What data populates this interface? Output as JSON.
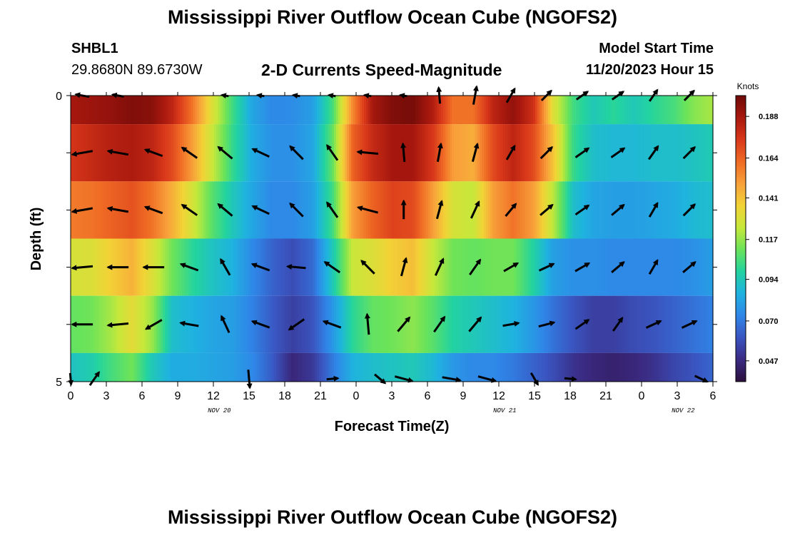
{
  "title_top": "Mississippi River Outflow Ocean Cube (NGOFS2)",
  "title_bottom": "Mississippi River Outflow Ocean Cube (NGOFS2)",
  "station": {
    "id": "SHBL1",
    "coords": "29.8680N  89.6730W"
  },
  "subtitle": "2-D Currents Speed-Magnitude",
  "model": {
    "label": "Model Start Time",
    "value": "11/20/2023 Hour 15"
  },
  "chart_data": {
    "type": "heatmap",
    "title": "2-D Currents Speed-Magnitude",
    "xlabel": "Forecast Time(Z)",
    "ylabel": "Depth (ft)",
    "x_tick_labels": [
      "0",
      "3",
      "6",
      "9",
      "12",
      "15",
      "18",
      "21",
      "0",
      "3",
      "6",
      "9",
      "12",
      "15",
      "18",
      "21",
      "0",
      "3",
      "6"
    ],
    "x_hours_since_start": [
      0,
      3,
      6,
      9,
      12,
      15,
      18,
      21,
      24,
      27,
      30,
      33,
      36,
      39,
      42,
      45,
      48,
      51,
      54
    ],
    "date_labels": [
      {
        "text": "NOV 20",
        "hour": 12.5
      },
      {
        "text": "NOV 21",
        "hour": 36.5
      },
      {
        "text": "NOV 22",
        "hour": 51.5
      }
    ],
    "y_tick_labels": [
      "0",
      "5"
    ],
    "ylim": [
      0,
      5
    ],
    "colorbar": {
      "label": "Knots",
      "ticks": [
        0.188,
        0.164,
        0.141,
        0.117,
        0.094,
        0.07,
        0.047
      ],
      "range": [
        0.035,
        0.2
      ],
      "colors": [
        "#2c0f3c",
        "#3a2a82",
        "#3a55c0",
        "#2f86e8",
        "#1fb2e0",
        "#22d3a0",
        "#6ae35a",
        "#c6e83a",
        "#f2d336",
        "#f8a13a",
        "#ef6a24",
        "#d9381a",
        "#a8180e",
        "#6e0a08"
      ]
    },
    "layers": [
      {
        "depth": 0,
        "speeds": [
          0.188,
          0.19,
          0.192,
          0.196,
          0.194,
          0.182,
          0.16,
          0.13,
          0.104,
          0.082,
          0.074,
          0.075,
          0.08,
          0.105,
          0.155,
          0.188,
          0.196,
          0.198,
          0.185,
          0.16,
          0.16,
          0.182,
          0.192,
          0.178,
          0.13,
          0.104,
          0.094,
          0.1,
          0.094,
          0.1,
          0.105,
          0.115,
          0.12
        ]
      },
      {
        "depth": 1,
        "speeds": [
          0.176,
          0.18,
          0.184,
          0.186,
          0.182,
          0.17,
          0.15,
          0.125,
          0.102,
          0.084,
          0.076,
          0.076,
          0.082,
          0.11,
          0.164,
          0.18,
          0.188,
          0.188,
          0.175,
          0.15,
          0.146,
          0.17,
          0.182,
          0.17,
          0.14,
          0.102,
          0.09,
          0.088,
          0.088,
          0.09,
          0.09,
          0.092,
          0.095
        ]
      },
      {
        "depth": 2,
        "speeds": [
          0.158,
          0.16,
          0.164,
          0.168,
          0.16,
          0.146,
          0.128,
          0.108,
          0.094,
          0.082,
          0.074,
          0.074,
          0.08,
          0.104,
          0.15,
          0.164,
          0.172,
          0.17,
          0.15,
          0.128,
          0.124,
          0.15,
          0.16,
          0.15,
          0.122,
          0.09,
          0.082,
          0.08,
          0.08,
          0.082,
          0.084,
          0.088,
          0.09
        ]
      },
      {
        "depth": 3,
        "speeds": [
          0.128,
          0.13,
          0.138,
          0.145,
          0.13,
          0.112,
          0.1,
          0.092,
          0.086,
          0.074,
          0.064,
          0.058,
          0.066,
          0.094,
          0.125,
          0.13,
          0.138,
          0.142,
          0.124,
          0.112,
          0.11,
          0.112,
          0.112,
          0.098,
          0.08,
          0.076,
          0.076,
          0.074,
          0.074,
          0.074,
          0.074,
          0.076,
          0.08
        ]
      },
      {
        "depth": 4,
        "speeds": [
          0.11,
          0.112,
          0.12,
          0.132,
          0.118,
          0.09,
          0.086,
          0.082,
          0.08,
          0.072,
          0.062,
          0.054,
          0.06,
          0.078,
          0.1,
          0.11,
          0.112,
          0.116,
          0.108,
          0.098,
          0.094,
          0.09,
          0.086,
          0.078,
          0.068,
          0.06,
          0.054,
          0.054,
          0.058,
          0.06,
          0.064,
          0.068,
          0.072
        ]
      },
      {
        "depth": 5,
        "speeds": [
          0.092,
          0.096,
          0.105,
          0.112,
          0.094,
          0.084,
          0.084,
          0.082,
          0.08,
          0.074,
          0.062,
          0.046,
          0.052,
          0.07,
          0.086,
          0.09,
          0.092,
          0.094,
          0.088,
          0.078,
          0.074,
          0.074,
          0.07,
          0.064,
          0.058,
          0.05,
          0.046,
          0.044,
          0.046,
          0.05,
          0.056,
          0.06,
          0.065
        ]
      }
    ],
    "vectors": [
      {
        "depth": 0,
        "hours": [
          1,
          4,
          13,
          16,
          19,
          22,
          25,
          28,
          31,
          34,
          37,
          40,
          43,
          46,
          49,
          52
        ],
        "angles_deg": [
          170,
          170,
          170,
          170,
          170,
          170,
          170,
          170,
          95,
          80,
          60,
          45,
          35,
          35,
          55,
          45
        ],
        "lengths": [
          0.6,
          0.5,
          0.3,
          0.3,
          0.3,
          0.3,
          0.3,
          0.3,
          0.7,
          0.8,
          0.7,
          0.6,
          0.6,
          0.6,
          0.6,
          0.6
        ]
      },
      {
        "depth": 1,
        "hours": [
          1,
          4,
          7,
          10,
          13,
          16,
          19,
          22,
          25,
          28,
          31,
          34,
          37,
          40,
          43,
          46,
          49,
          52
        ],
        "angles_deg": [
          190,
          170,
          160,
          145,
          140,
          155,
          135,
          125,
          175,
          95,
          80,
          75,
          60,
          45,
          35,
          35,
          55,
          45
        ],
        "lengths": [
          0.9,
          0.9,
          0.8,
          0.8,
          0.8,
          0.8,
          0.8,
          0.8,
          0.9,
          0.8,
          0.8,
          0.8,
          0.7,
          0.7,
          0.7,
          0.7,
          0.7,
          0.7
        ]
      },
      {
        "depth": 2,
        "hours": [
          1,
          4,
          7,
          10,
          13,
          16,
          19,
          22,
          25,
          28,
          31,
          34,
          37,
          40,
          43,
          46,
          49,
          52
        ],
        "angles_deg": [
          190,
          170,
          160,
          145,
          140,
          155,
          135,
          125,
          165,
          90,
          75,
          65,
          50,
          40,
          35,
          40,
          60,
          45
        ],
        "lengths": [
          0.9,
          0.9,
          0.8,
          0.8,
          0.8,
          0.8,
          0.8,
          0.8,
          0.9,
          0.8,
          0.8,
          0.8,
          0.7,
          0.7,
          0.7,
          0.7,
          0.7,
          0.7
        ]
      },
      {
        "depth": 3,
        "hours": [
          1,
          4,
          7,
          10,
          13,
          16,
          19,
          22,
          25,
          28,
          31,
          34,
          37,
          40,
          43,
          46,
          49,
          52
        ],
        "angles_deg": [
          185,
          180,
          180,
          160,
          120,
          160,
          175,
          145,
          135,
          75,
          65,
          55,
          30,
          25,
          30,
          40,
          60,
          40
        ],
        "lengths": [
          0.9,
          0.9,
          0.9,
          0.8,
          0.8,
          0.8,
          0.8,
          0.8,
          0.8,
          0.8,
          0.8,
          0.8,
          0.7,
          0.7,
          0.7,
          0.7,
          0.7,
          0.7
        ]
      },
      {
        "depth": 4,
        "hours": [
          1,
          4,
          7,
          10,
          13,
          16,
          19,
          22,
          25,
          28,
          31,
          34,
          37,
          40,
          43,
          46,
          49,
          52
        ],
        "angles_deg": [
          180,
          185,
          210,
          170,
          115,
          160,
          215,
          160,
          95,
          50,
          55,
          50,
          10,
          15,
          35,
          55,
          25,
          25
        ],
        "lengths": [
          0.9,
          0.9,
          0.8,
          0.8,
          0.8,
          0.8,
          0.8,
          0.8,
          0.9,
          0.8,
          0.8,
          0.8,
          0.7,
          0.7,
          0.7,
          0.7,
          0.7,
          0.7
        ]
      },
      {
        "depth": 5,
        "hours": [
          0,
          2,
          15,
          22,
          26,
          28,
          32,
          35,
          39,
          42,
          53
        ],
        "angles_deg": [
          275,
          55,
          275,
          5,
          320,
          345,
          350,
          345,
          300,
          355,
          335
        ],
        "lengths": [
          0.5,
          0.7,
          0.8,
          0.5,
          0.6,
          0.8,
          0.8,
          0.8,
          0.6,
          0.5,
          0.6
        ]
      }
    ]
  }
}
